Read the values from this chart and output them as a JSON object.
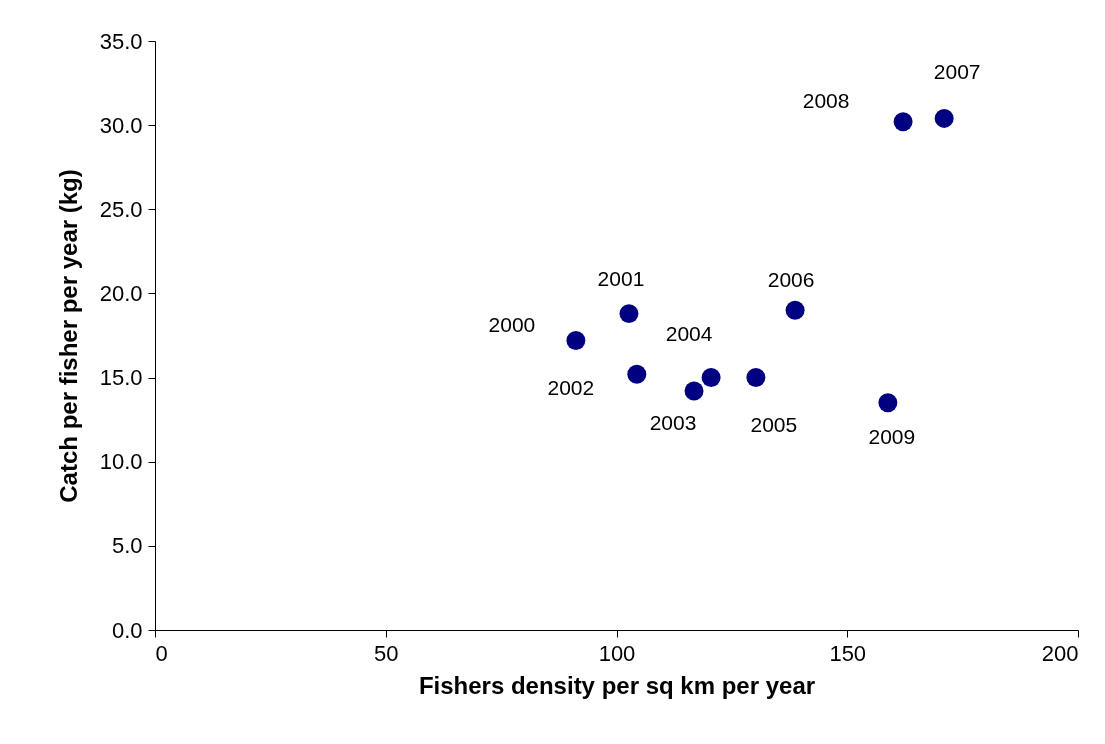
{
  "chart_data": {
    "type": "scatter",
    "xlabel": "Fishers density per sq km per year",
    "ylabel": "Catch per fisher per year (kg)",
    "x": [
      91.2,
      102.7,
      104.4,
      116.8,
      120.5,
      130.2,
      138.7,
      171.0,
      162.1,
      158.8
    ],
    "values": [
      17.2,
      18.8,
      15.2,
      14.2,
      15.0,
      15.0,
      19.0,
      30.4,
      30.2,
      13.5
    ],
    "color": "#000080",
    "marker": "circle",
    "grid": false,
    "xlim": [
      0,
      200
    ],
    "xticks": [
      0,
      50,
      100,
      150,
      200
    ],
    "ylim": [
      0,
      35
    ],
    "yticks": [
      {
        "value": 0,
        "label": "0.0"
      },
      {
        "value": 5,
        "label": "5.0"
      },
      {
        "value": 10,
        "label": "10.0"
      },
      {
        "value": 15,
        "label": "15.0"
      },
      {
        "value": 20,
        "label": "20.0"
      },
      {
        "value": 25,
        "label": "25.0"
      },
      {
        "value": 30,
        "label": "30.0"
      },
      {
        "value": 35,
        "label": "35.0"
      }
    ],
    "annotations": [
      {
        "text": "2000",
        "x": 91.2,
        "y": 17.2
      },
      {
        "text": "2001",
        "x": 102.7,
        "y": 18.8
      },
      {
        "text": "2002",
        "x": 104.4,
        "y": 15.2
      },
      {
        "text": "2003",
        "x": 116.8,
        "y": 14.2
      },
      {
        "text": "2004",
        "x": 120.5,
        "y": 15.0
      },
      {
        "text": "2005",
        "x": 130.2,
        "y": 15.0
      },
      {
        "text": "2006",
        "x": 138.7,
        "y": 19.0
      },
      {
        "text": "2007",
        "x": 171.0,
        "y": 30.4
      },
      {
        "text": "2008",
        "x": 162.1,
        "y": 30.2
      },
      {
        "text": "2009",
        "x": 158.8,
        "y": 13.5
      }
    ]
  }
}
